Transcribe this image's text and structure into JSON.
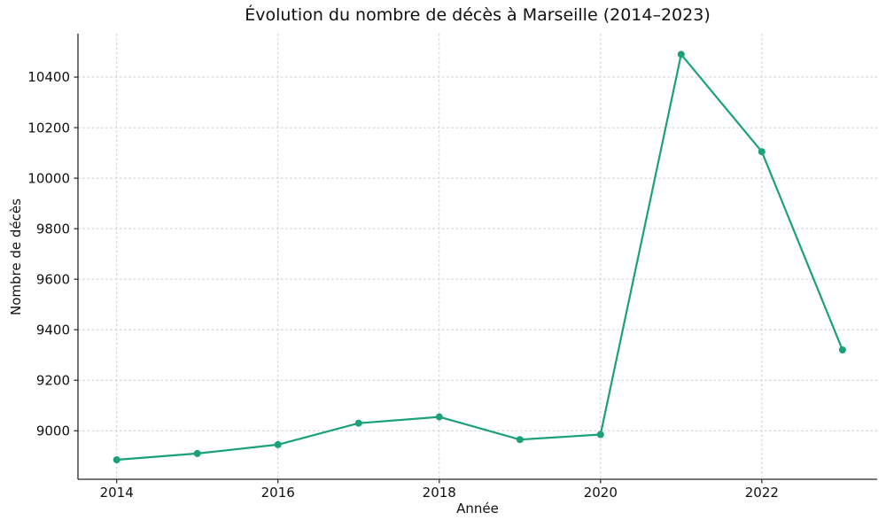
{
  "chart_data": {
    "type": "line",
    "title": "Évolution du nombre de décès à Marseille (2014–2023)",
    "xlabel": "Année",
    "ylabel": "Nombre de décès",
    "x": [
      2014,
      2015,
      2016,
      2017,
      2018,
      2019,
      2020,
      2021,
      2022,
      2023
    ],
    "y": [
      8885,
      8910,
      8945,
      9030,
      9055,
      8965,
      8985,
      10490,
      10105,
      9320
    ],
    "xticks": [
      2014,
      2016,
      2018,
      2020,
      2022
    ],
    "yticks": [
      9000,
      9200,
      9400,
      9600,
      9800,
      10000,
      10200,
      10400
    ],
    "xlim": [
      2013.52,
      2023.43
    ],
    "ylim": [
      8808,
      10572
    ],
    "grid": true,
    "line_color": "#1aa179",
    "marker_color": "#1aa179",
    "grid_color": "#cccccc",
    "background_color": "#ffffff"
  }
}
